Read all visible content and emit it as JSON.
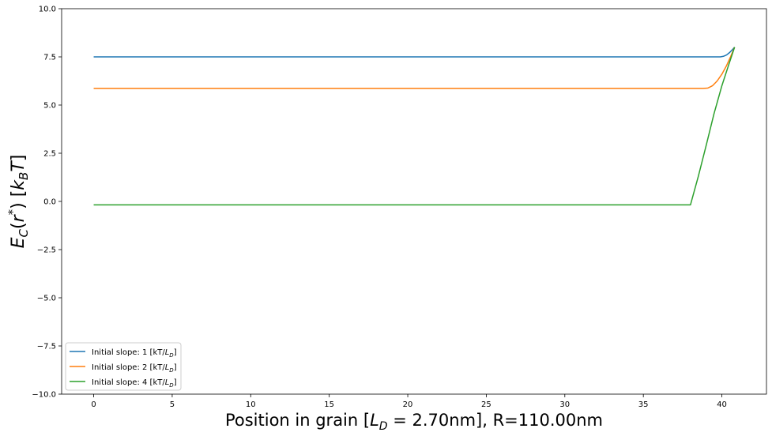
{
  "chart_data": {
    "type": "line",
    "xlabel": "Position in grain [L_D = 2.70nm], R=110.00nm",
    "ylabel": "E_C(r*) [k_B T]",
    "xlim": [
      -2.04,
      42.84
    ],
    "ylim": [
      -10.0,
      10.0
    ],
    "xticks": [
      "0",
      "5",
      "10",
      "15",
      "20",
      "25",
      "30",
      "35",
      "40"
    ],
    "yticks": [
      "10.0",
      "7.5",
      "5.0",
      "2.5",
      "0.0",
      "−2.5",
      "−5.0",
      "−7.5",
      "−10.0"
    ],
    "grid": false,
    "legend_position": "lower-left",
    "series": [
      {
        "name": "Initial slope: 1 [kT/L_D]",
        "color": "#1f77b4",
        "points": [
          [
            0,
            7.5
          ],
          [
            39.6,
            7.5
          ],
          [
            39.9,
            7.5
          ],
          [
            40.1,
            7.53
          ],
          [
            40.3,
            7.6
          ],
          [
            40.5,
            7.73
          ],
          [
            40.7,
            7.9
          ],
          [
            40.81,
            8.0
          ]
        ]
      },
      {
        "name": "Initial slope: 2 [kT/L_D]",
        "color": "#ff7f0e",
        "points": [
          [
            0,
            5.86
          ],
          [
            38.8,
            5.86
          ],
          [
            39.1,
            5.88
          ],
          [
            39.4,
            6.0
          ],
          [
            39.7,
            6.25
          ],
          [
            40.0,
            6.6
          ],
          [
            40.3,
            7.05
          ],
          [
            40.55,
            7.5
          ],
          [
            40.81,
            8.0
          ]
        ]
      },
      {
        "name": "Initial slope: 4 [kT/L_D]",
        "color": "#2ca02c",
        "points": [
          [
            0,
            -0.18
          ],
          [
            38.0,
            -0.18
          ],
          [
            38.5,
            1.3
          ],
          [
            39.0,
            2.9
          ],
          [
            39.5,
            4.55
          ],
          [
            40.0,
            6.0
          ],
          [
            40.4,
            7.0
          ],
          [
            40.81,
            8.0
          ]
        ]
      }
    ]
  }
}
